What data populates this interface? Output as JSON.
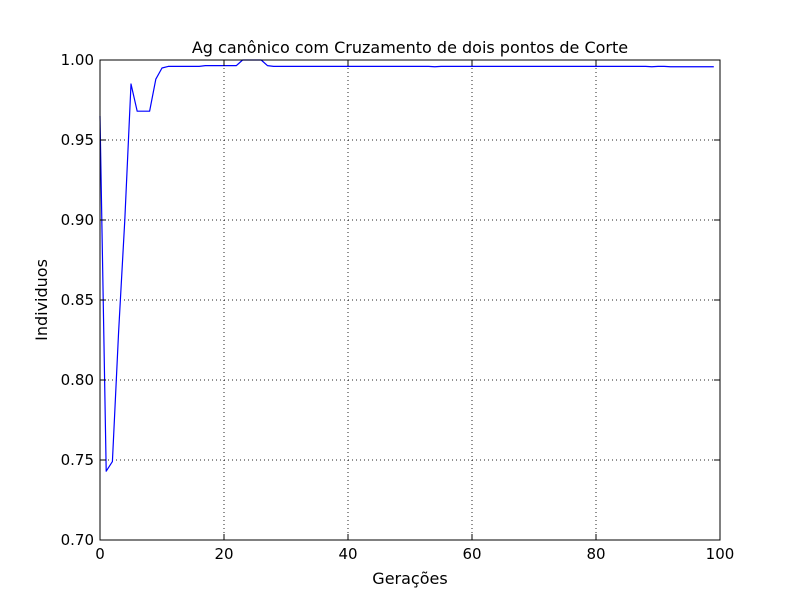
{
  "chart_data": {
    "type": "line",
    "title": "Ag canônico com Cruzamento de dois pontos de Corte",
    "xlabel": "Gerações",
    "ylabel": "Individuos",
    "xlim": [
      0,
      100
    ],
    "ylim": [
      0.7,
      1.0
    ],
    "xticks": [
      0,
      20,
      40,
      60,
      80,
      100
    ],
    "xtick_labels": [
      "0",
      "20",
      "40",
      "60",
      "80",
      "100"
    ],
    "yticks": [
      0.7,
      0.75,
      0.8,
      0.85,
      0.9,
      0.95,
      1.0
    ],
    "ytick_labels": [
      "0.70",
      "0.75",
      "0.80",
      "0.85",
      "0.90",
      "0.95",
      "1.00"
    ],
    "grid": true,
    "series": [
      {
        "color": "#0000ff",
        "x": [
          0,
          1,
          2,
          3,
          4,
          5,
          6,
          7,
          8,
          9,
          10,
          11,
          12,
          13,
          14,
          15,
          16,
          17,
          18,
          19,
          20,
          21,
          22,
          23,
          24,
          25,
          26,
          27,
          28,
          29,
          30,
          31,
          32,
          33,
          34,
          35,
          36,
          37,
          38,
          39,
          40,
          41,
          42,
          43,
          44,
          45,
          46,
          47,
          48,
          49,
          50,
          51,
          52,
          53,
          54,
          55,
          56,
          57,
          58,
          59,
          60,
          61,
          62,
          63,
          64,
          65,
          66,
          67,
          68,
          69,
          70,
          71,
          72,
          73,
          74,
          75,
          76,
          77,
          78,
          79,
          80,
          81,
          82,
          83,
          84,
          85,
          86,
          87,
          88,
          89,
          90,
          91,
          92,
          93,
          94,
          95,
          96,
          97,
          98,
          99
        ],
        "y": [
          0.965,
          0.743,
          0.749,
          0.83,
          0.9,
          0.985,
          0.968,
          0.968,
          0.968,
          0.988,
          0.995,
          0.996,
          0.996,
          0.996,
          0.996,
          0.996,
          0.996,
          0.9965,
          0.9965,
          0.9965,
          0.9965,
          0.9965,
          0.9965,
          1.0,
          1.0,
          1.0,
          1.0,
          0.9965,
          0.996,
          0.996,
          0.996,
          0.996,
          0.996,
          0.996,
          0.996,
          0.996,
          0.996,
          0.996,
          0.996,
          0.996,
          0.996,
          0.996,
          0.996,
          0.996,
          0.996,
          0.996,
          0.996,
          0.996,
          0.996,
          0.996,
          0.996,
          0.996,
          0.996,
          0.996,
          0.9958,
          0.996,
          0.996,
          0.996,
          0.996,
          0.996,
          0.996,
          0.996,
          0.996,
          0.996,
          0.996,
          0.996,
          0.996,
          0.996,
          0.996,
          0.996,
          0.996,
          0.996,
          0.996,
          0.996,
          0.996,
          0.996,
          0.996,
          0.996,
          0.996,
          0.996,
          0.996,
          0.996,
          0.996,
          0.996,
          0.996,
          0.996,
          0.996,
          0.996,
          0.996,
          0.9958,
          0.996,
          0.996,
          0.9958,
          0.9958,
          0.9958,
          0.9958,
          0.9958,
          0.9958,
          0.9958,
          0.9958
        ]
      }
    ]
  }
}
